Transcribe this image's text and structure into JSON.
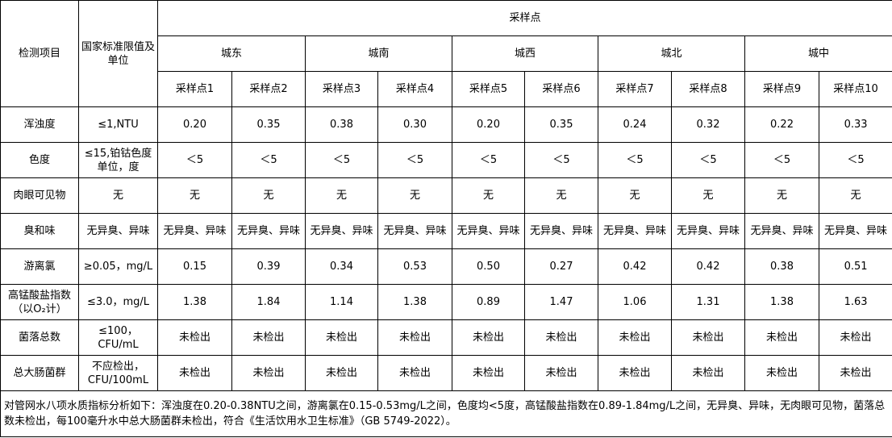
{
  "header": {
    "item": "检测项目",
    "standard": "国家标准限值及单位",
    "sampling": "采样点",
    "districts": [
      "城东",
      "城南",
      "城西",
      "城北",
      "城中"
    ],
    "points": [
      "采样点1",
      "采样点2",
      "采样点3",
      "采样点4",
      "采样点5",
      "采样点6",
      "采样点7",
      "采样点8",
      "采样点9",
      "采样点10"
    ]
  },
  "rows": [
    {
      "item": "浑浊度",
      "standard": "≤1,NTU",
      "values": [
        "0.20",
        "0.35",
        "0.38",
        "0.30",
        "0.20",
        "0.35",
        "0.24",
        "0.32",
        "0.22",
        "0.33"
      ]
    },
    {
      "item": "色度",
      "standard": "≤15,铂钴色度单位，度",
      "values": [
        "＜5",
        "＜5",
        "＜5",
        "＜5",
        "＜5",
        "＜5",
        "＜5",
        "＜5",
        "＜5",
        "＜5"
      ]
    },
    {
      "item": "肉眼可见物",
      "standard": "无",
      "values": [
        "无",
        "无",
        "无",
        "无",
        "无",
        "无",
        "无",
        "无",
        "无",
        "无"
      ]
    },
    {
      "item": "臭和味",
      "standard": "无异臭、异味",
      "values": [
        "无异臭、异味",
        "无异臭、异味",
        "无异臭、异味",
        "无异臭、异味",
        "无异臭、异味",
        "无异臭、异味",
        "无异臭、异味",
        "无异臭、异味",
        "无异臭、异味",
        "无异臭、异味"
      ]
    },
    {
      "item": "游离氯",
      "standard": "≥0.05，mg/L",
      "values": [
        "0.15",
        "0.39",
        "0.34",
        "0.53",
        "0.50",
        "0.27",
        "0.42",
        "0.42",
        "0.38",
        "0.51"
      ]
    },
    {
      "item": "高锰酸盐指数（以O₂计）",
      "standard": "≤3.0，mg/L",
      "values": [
        "1.38",
        "1.84",
        "1.14",
        "1.38",
        "0.89",
        "1.47",
        "1.06",
        "1.31",
        "1.38",
        "1.63"
      ]
    },
    {
      "item": "菌落总数",
      "standard": "≤100，CFU/mL",
      "values": [
        "未检出",
        "未检出",
        "未检出",
        "未检出",
        "未检出",
        "未检出",
        "未检出",
        "未检出",
        "未检出",
        "未检出"
      ]
    },
    {
      "item": "总大肠菌群",
      "standard": "不应检出，CFU/100mL",
      "values": [
        "未检出",
        "未检出",
        "未检出",
        "未检出",
        "未检出",
        "未检出",
        "未检出",
        "未检出",
        "未检出",
        "未检出"
      ]
    }
  ],
  "note": "对管网水八项水质指标分析如下：浑浊度在0.20-0.38NTU之间，游离氯在0.15-0.53mg/L之间，色度均<5度，高锰酸盐指数在0.89-1.84mg/L之间，无异臭、异味，无肉眼可见物，菌落总数未检出，每100毫升水中总大肠菌群未检出，符合《生活饮用水卫生标准》（GB 5749-2022）。"
}
